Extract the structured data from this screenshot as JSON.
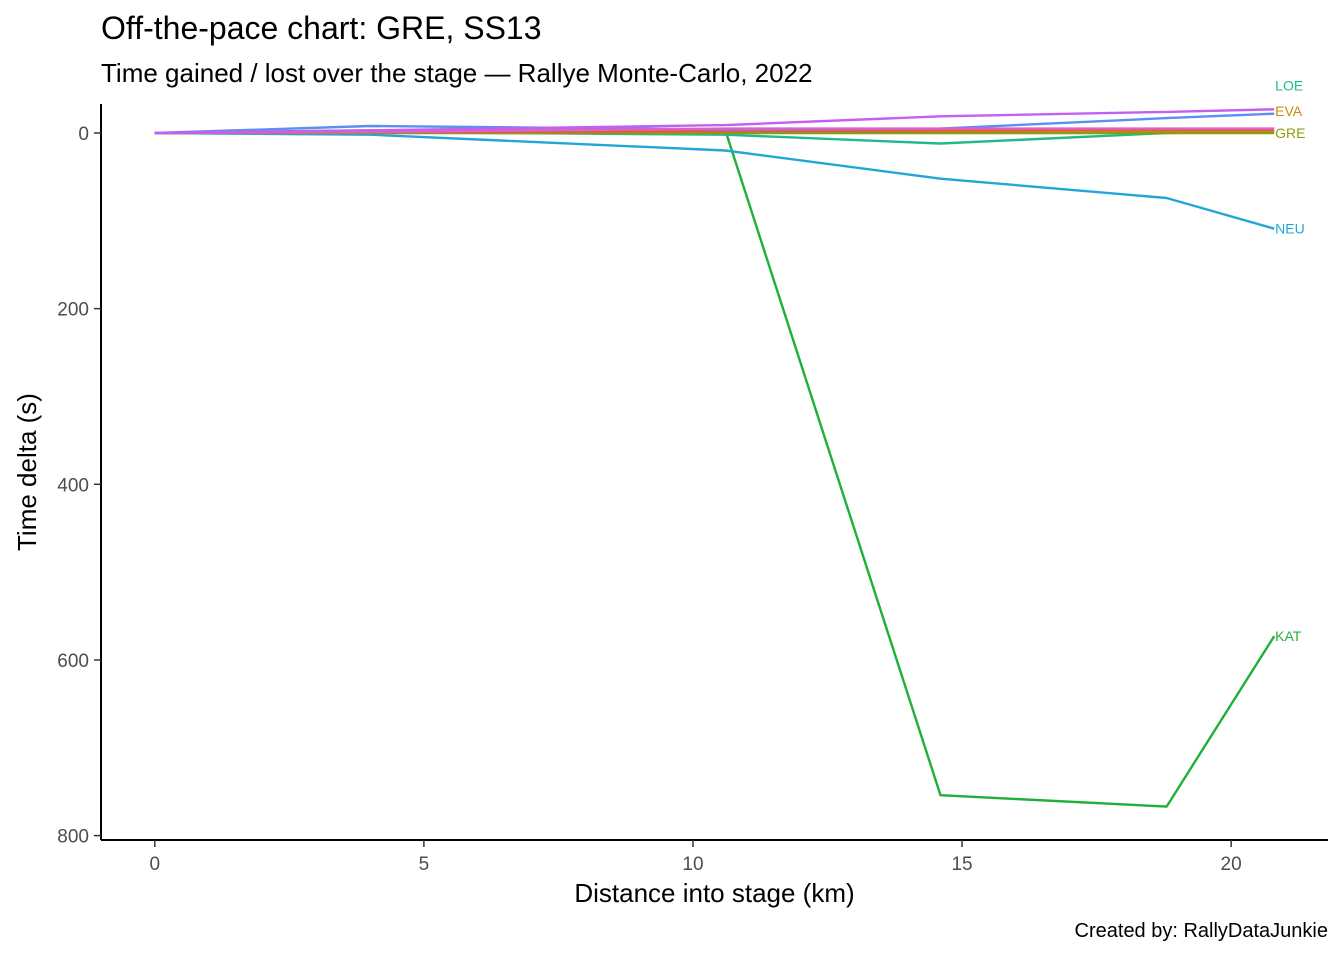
{
  "title": "Off-the-pace chart: GRE, SS13",
  "subtitle": "Time gained / lost over the stage — Rallye Monte-Carlo, 2022",
  "caption": "Created by: RallyDataJunkie",
  "chart_data": {
    "type": "line",
    "xlabel": "Distance into stage (km)",
    "ylabel": "Time delta (s)",
    "xlim": [
      -1,
      21.8
    ],
    "ylim": [
      -33,
      805
    ],
    "y_reversed": true,
    "grid": false,
    "legend": "none (direct end-of-line labels)",
    "x_ticks": [
      0,
      5,
      10,
      15,
      20
    ],
    "y_ticks": [
      0,
      200,
      400,
      600,
      800
    ],
    "x_tick_labels": [
      "0",
      "5",
      "10",
      "15",
      "20"
    ],
    "y_tick_labels": [
      "0",
      "200",
      "400",
      "600",
      "800"
    ],
    "series": [
      {
        "name": "KAT",
        "color": "#1fb03a",
        "x": [
          0,
          4.0,
          10.6,
          14.6,
          18.8,
          20.8
        ],
        "y": [
          0,
          -3,
          -3,
          754,
          767,
          573
        ]
      },
      {
        "name": "NEU",
        "color": "#20a7d8",
        "x": [
          0,
          4.0,
          10.6,
          14.6,
          18.8,
          20.8
        ],
        "y": [
          0,
          2,
          20,
          52,
          74,
          109
        ]
      },
      {
        "name": "LOE",
        "color": "#1fb98e",
        "x": [
          0,
          4.0,
          10.6,
          14.6,
          18.8,
          20.8
        ],
        "y": [
          0,
          -1,
          2,
          12,
          0,
          -2
        ]
      },
      {
        "name": "EVA",
        "color": "#c98a0e",
        "x": [
          0,
          4.0,
          10.6,
          14.6,
          18.8,
          20.8
        ],
        "y": [
          0,
          -1,
          -1,
          -1,
          -2,
          -2
        ]
      },
      {
        "name": "GRE",
        "color": "#8f9b0f",
        "x": [
          0,
          4.0,
          10.6,
          14.6,
          18.8,
          20.8
        ],
        "y": [
          0,
          0,
          0,
          0,
          0,
          0
        ]
      },
      {
        "name": "",
        "color": "#e45a3c",
        "x": [
          0,
          4.0,
          10.6,
          14.6,
          18.8,
          20.8
        ],
        "y": [
          0,
          -1,
          -2,
          -3,
          -4,
          -4
        ]
      },
      {
        "name": "",
        "color": "#5b8ff2",
        "x": [
          0,
          4.0,
          10.6,
          14.6,
          18.8,
          20.8
        ],
        "y": [
          0,
          -8,
          -4,
          -5,
          -17,
          -22
        ]
      },
      {
        "name": "",
        "color": "#e25ec9",
        "x": [
          0,
          4.0,
          10.6,
          14.6,
          18.8,
          20.8
        ],
        "y": [
          0,
          -1,
          -5,
          -5,
          -5,
          -5
        ]
      },
      {
        "name": "",
        "color": "#c45ff2",
        "x": [
          0,
          4.0,
          10.6,
          14.6,
          18.8,
          20.8
        ],
        "y": [
          0,
          -3,
          -9,
          -19,
          -24,
          -27
        ]
      }
    ],
    "end_labels": [
      {
        "text": "LOE",
        "color": "#1fb98e",
        "y": -54
      },
      {
        "text": "EVA",
        "color": "#c98a0e",
        "y": -25
      },
      {
        "text": "GRE",
        "color": "#8f9b0f",
        "y": 0
      },
      {
        "text": "NEU",
        "color": "#20a7d8",
        "y": 109
      },
      {
        "text": "KAT",
        "color": "#1fb03a",
        "y": 573
      }
    ]
  }
}
